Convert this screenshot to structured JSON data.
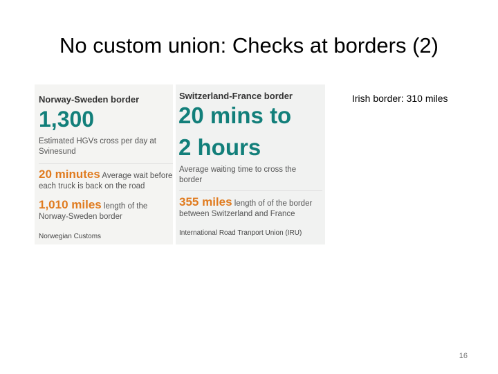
{
  "title": "No custom union: Checks at borders (2)",
  "norway": {
    "heading": "Norway-Sweden border",
    "big": "1,300",
    "big_desc": "Estimated HGVs cross per day at Svinesund",
    "stat1": "20 minutes",
    "stat1_desc": "Average wait before each truck is back on the road",
    "stat2": "1,010 miles",
    "stat2_desc": "length of the Norway-Sweden border",
    "source": "Norwegian Customs"
  },
  "swiss": {
    "heading": "Switzerland-France border",
    "big1": "20 mins to",
    "big2": "2 hours",
    "big_desc": "Average waiting time to cross the border",
    "stat1": "355 miles",
    "stat1_desc": "length of of the border between Switzerland and France",
    "source": "International Road Tranport Union (IRU)"
  },
  "irish": "Irish border: 310 miles",
  "page_number": "16"
}
